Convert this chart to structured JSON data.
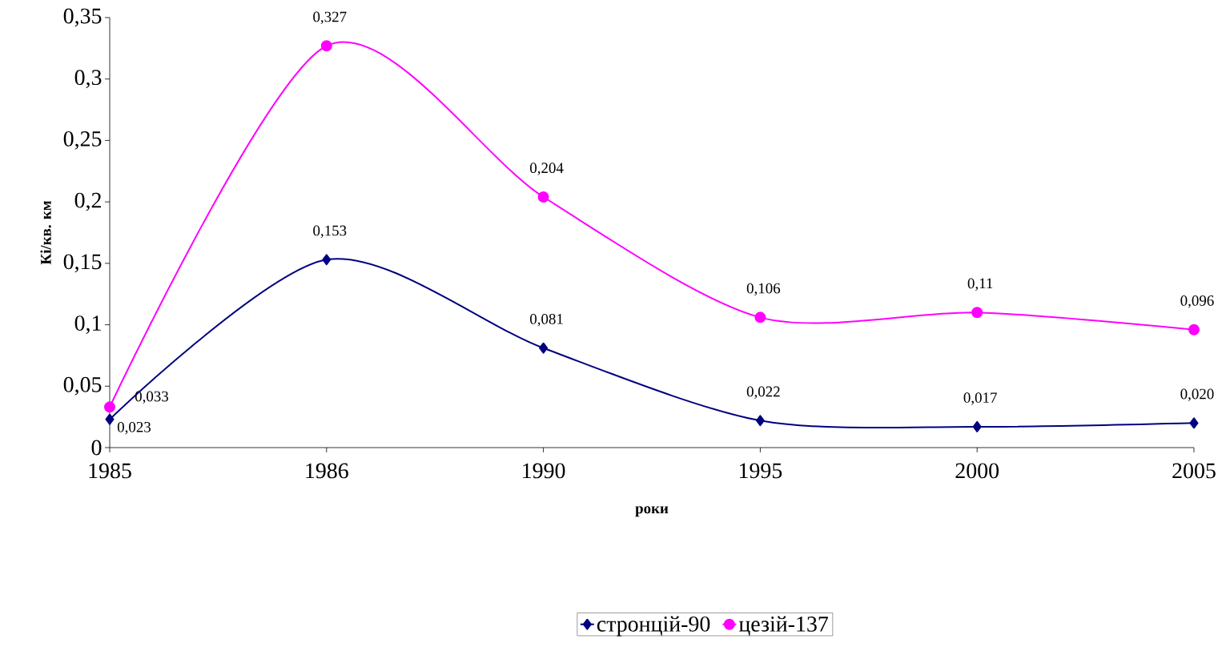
{
  "chart_data": {
    "type": "line",
    "xlabel": "роки",
    "ylabel": "Кі/кв. км",
    "categories": [
      "1985",
      "1986",
      "1990",
      "1995",
      "2000",
      "2005"
    ],
    "series": [
      {
        "name": "стронцій-90",
        "color": "#000080",
        "marker": "diamond",
        "values": [
          0.023,
          0.153,
          0.081,
          0.022,
          0.017,
          0.02
        ],
        "value_labels": [
          "0,023",
          "0,153",
          "0,081",
          "0,022",
          "0,017",
          "0,020"
        ]
      },
      {
        "name": "цезій-137",
        "color": "#ff00ff",
        "marker": "circle",
        "values": [
          0.033,
          0.327,
          0.204,
          0.106,
          0.11,
          0.096
        ],
        "value_labels": [
          "0,033",
          "0,327",
          "0,204",
          "0,106",
          "0,11",
          "0,096"
        ]
      }
    ],
    "ylim": [
      0,
      0.35
    ],
    "yticks": [
      0,
      {
        "value": 0.05,
        "label": "0,05"
      },
      {
        "value": 0.1,
        "label": "0,1"
      },
      {
        "value": 0.15,
        "label": "0,15"
      },
      {
        "value": 0.2,
        "label": "0,2"
      },
      {
        "value": 0.25,
        "label": "0,25"
      },
      {
        "value": 0.3,
        "label": "0,3"
      },
      {
        "value": 0.35,
        "label": "0,35"
      }
    ],
    "grid": false,
    "legend": "bottom",
    "line_style": "solid"
  }
}
